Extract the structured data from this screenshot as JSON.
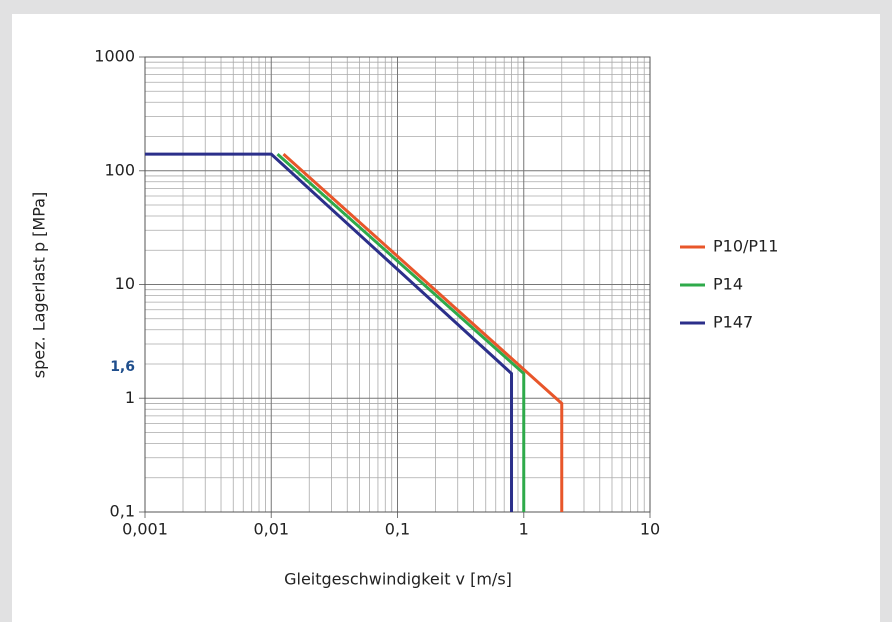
{
  "chart_data": {
    "type": "line",
    "x_label": "Gleitgeschwindigkeit v [m/s]",
    "y_label": "spez. Lagerlast p [MPa]",
    "log_x": true,
    "log_y": true,
    "grid": true,
    "legend": "right",
    "xlim": [
      0.001,
      10
    ],
    "xticks": [
      {
        "value": 0.001,
        "label": "0,001"
      },
      {
        "value": 0.01,
        "label": "0,01"
      },
      {
        "value": 0.1,
        "label": "0,1"
      },
      1,
      10
    ],
    "ylim": [
      0.1,
      1000
    ],
    "yticks": [
      {
        "value": 0.1,
        "label": "0,1"
      },
      1,
      10,
      100,
      1000
    ],
    "annotations": [
      {
        "text": "1,6",
        "y": 1.6,
        "color": "#1f4e8c"
      }
    ],
    "series": [
      {
        "name": "P10/P11",
        "color": "#e8562a",
        "x": [
          0.0125,
          2,
          2
        ],
        "values": [
          140,
          0.9,
          0.1
        ]
      },
      {
        "name": "P14",
        "color": "#2eaa4a",
        "x": [
          0.0112,
          1,
          1
        ],
        "values": [
          140,
          1.65,
          0.1
        ]
      },
      {
        "name": "P147",
        "color": "#2b2f8a",
        "x": [
          0.001,
          0.01,
          0.8,
          0.8
        ],
        "values": [
          140,
          140,
          1.65,
          0.1
        ]
      }
    ]
  }
}
